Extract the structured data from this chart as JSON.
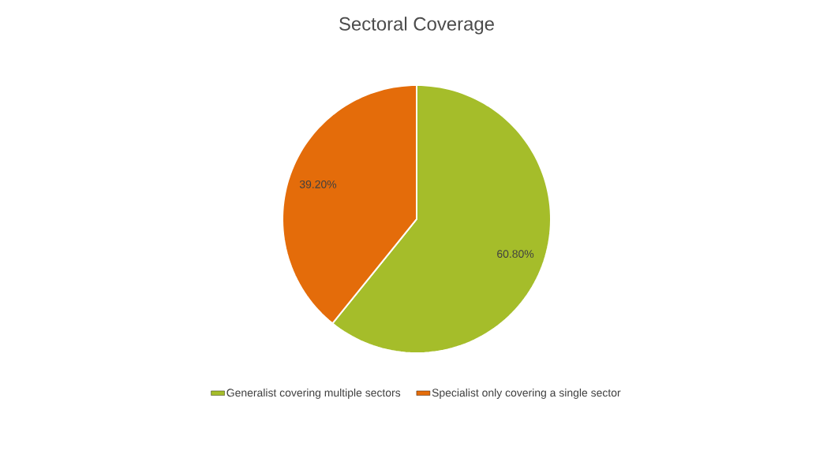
{
  "chart_data": {
    "type": "pie",
    "title": "Sectoral Coverage",
    "categories": [
      "Generalist covering multiple sectors",
      "Specialist only covering a single sector"
    ],
    "values": [
      60.8,
      39.2
    ],
    "colors": [
      "#a5bd2a",
      "#e46c0a"
    ],
    "value_labels": [
      "60.80%",
      "39.20%"
    ],
    "legend": "bottom"
  }
}
